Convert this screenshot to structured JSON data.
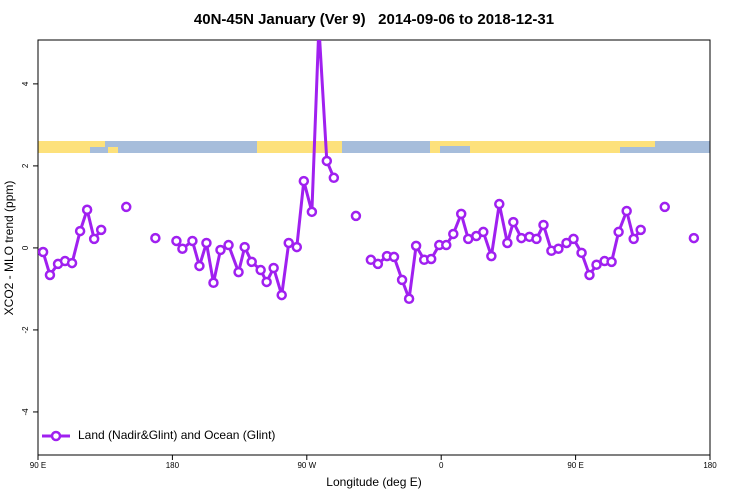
{
  "chart_data": {
    "type": "line",
    "title": "40N-45N January (Ver 9)   2014-09-06 to 2018-12-31",
    "x_label": "Longitude (deg E)",
    "y_label": "XCO2 - MLO trend (ppm)",
    "xlim": [
      90,
      540
    ],
    "ylim": [
      -5.05,
      5.07
    ],
    "xticks": [
      {
        "value": 90,
        "label": "90 E"
      },
      180,
      {
        "value": 270,
        "label": "90 W"
      },
      {
        "value": 360,
        "label": "0"
      },
      {
        "value": 450,
        "label": "90 E"
      },
      {
        "value": 540,
        "label": "180"
      }
    ],
    "yticks": [
      -4,
      -2,
      0,
      2,
      4
    ],
    "legend": "bottom-left",
    "x": [
      93.4,
      98,
      103.4,
      108.1,
      112.8,
      118.2,
      122.9,
      127.6,
      132.3,
      140,
      149.1,
      158,
      168.6,
      175,
      182.7,
      186.7,
      193.4,
      198.1,
      202.8,
      207.5,
      212.2,
      217.6,
      224.3,
      228.4,
      233.1,
      239.1,
      243.1,
      247.8,
      253.2,
      257.9,
      263.3,
      268,
      273.4,
      278.1,
      283.4,
      288.1,
      295,
      302.9,
      308,
      312.9,
      317.6,
      323.7,
      328.4,
      333.8,
      338.5,
      343.2,
      348.6,
      353.3,
      358.7,
      363.4,
      368.1,
      373.4,
      378.1,
      383.5,
      388.2,
      393.6,
      398.9,
      404.3,
      408.3,
      413.7,
      419.1,
      423.8,
      428.5,
      433.8,
      438.5,
      443.9,
      448.6,
      454,
      459.3,
      464,
      469.4,
      474.1,
      478.8,
      484.2,
      488.9,
      493.6,
      500,
      509.7,
      520,
      529.2
    ],
    "series": [
      {
        "name": "Land (Nadir&Glint) and Ocean (Glint)",
        "color": "#a020f0",
        "values": [
          -0.1,
          -0.66,
          -0.39,
          -0.32,
          -0.37,
          0.41,
          0.93,
          0.22,
          0.44,
          null,
          1.0,
          null,
          0.24,
          null,
          0.17,
          -0.02,
          0.17,
          -0.44,
          0.12,
          -0.85,
          -0.05,
          0.07,
          -0.59,
          0.02,
          -0.34,
          -0.54,
          -0.83,
          -0.49,
          -1.15,
          0.12,
          0.02,
          1.63,
          0.88,
          5.4,
          2.12,
          1.71,
          null,
          0.78,
          null,
          -0.29,
          -0.39,
          -0.2,
          -0.22,
          -0.78,
          -1.24,
          0.05,
          -0.29,
          -0.27,
          0.07,
          0.07,
          0.34,
          0.83,
          0.22,
          0.29,
          0.39,
          -0.2,
          1.07,
          0.12,
          0.63,
          0.24,
          0.27,
          0.22,
          0.56,
          -0.07,
          -0.02,
          0.12,
          0.22,
          -0.12,
          -0.66,
          -0.41,
          -0.32,
          -0.34,
          0.39,
          0.9,
          0.22,
          0.44,
          null,
          1.0,
          null,
          0.24
        ]
      }
    ]
  }
}
